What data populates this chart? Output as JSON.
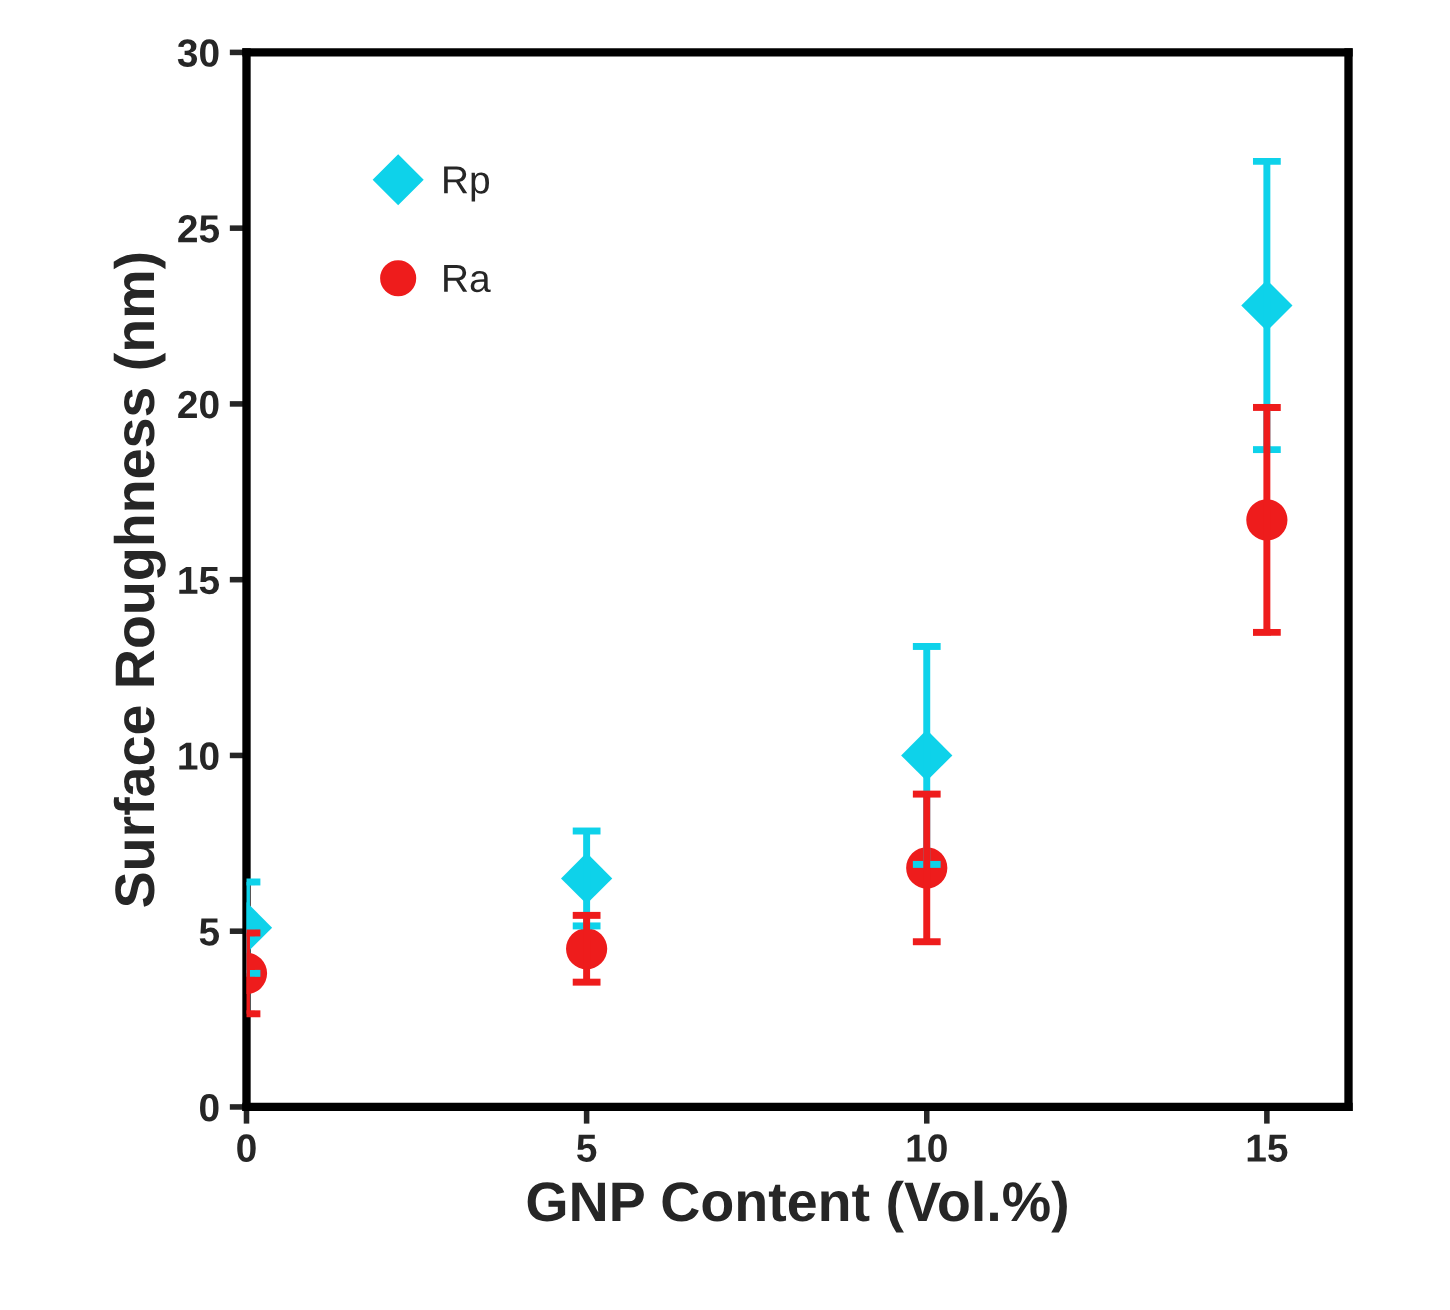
{
  "chart_data": {
    "type": "scatter",
    "xlabel": "GNP Content (Vol.%)",
    "ylabel": "Surface Roughness (nm)",
    "x": [
      0,
      5,
      10,
      15
    ],
    "series": [
      {
        "name": "Rp",
        "color": "#0ed2ea",
        "marker": "diamond",
        "values": [
          5.1,
          6.5,
          10.0,
          22.8
        ],
        "errors": [
          1.3,
          1.35,
          3.1,
          4.1
        ]
      },
      {
        "name": "Ra",
        "color": "#ee1c1c",
        "marker": "circle",
        "values": [
          3.8,
          4.5,
          6.8,
          16.7
        ],
        "errors": [
          1.15,
          0.95,
          2.1,
          3.2
        ]
      }
    ],
    "xlim": [
      0,
      16.2
    ],
    "xticks": [
      0,
      5,
      10,
      15
    ],
    "ylim": [
      0,
      30
    ],
    "yticks": [
      0,
      5,
      10,
      15,
      20,
      25,
      30
    ],
    "grid": false,
    "legend": "top left"
  }
}
